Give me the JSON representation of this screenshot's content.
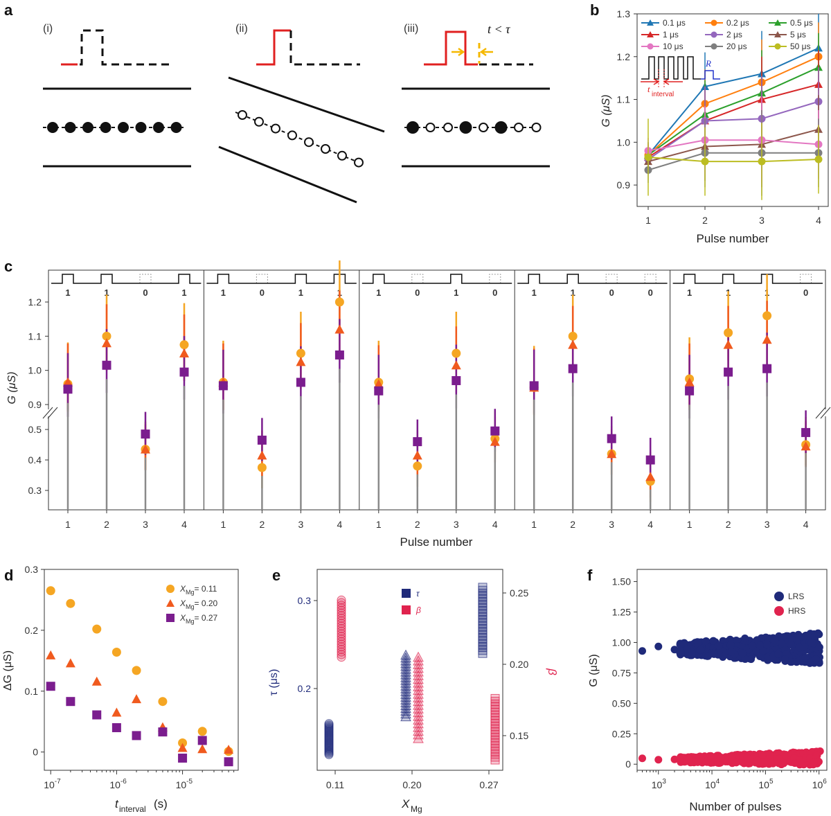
{
  "panel_labels": {
    "a": "a",
    "b": "b",
    "c": "c",
    "d": "d",
    "e": "e",
    "f": "f"
  },
  "panel_a": {
    "sub_labels": [
      "(i)",
      "(ii)",
      "(iii)"
    ],
    "condition": "t < τ"
  },
  "colors": {
    "orange": "#f5a623",
    "red_orange": "#f05a1e",
    "purple": "#7b1d8e",
    "gray": "#8a8a8a",
    "navy": "#1f2a7a",
    "crimson": "#e0234e",
    "b_series": [
      "#1f77b4",
      "#ff7f0e",
      "#2ca02c",
      "#d62728",
      "#9467bd",
      "#8c564b",
      "#e377c2",
      "#7f7f7f",
      "#bcbd22"
    ]
  },
  "chart_data": [
    {
      "id": "b",
      "type": "line",
      "xlabel": "Pulse number",
      "ylabel": "G (μS)",
      "x": [
        1,
        2,
        3,
        4
      ],
      "ylim": [
        0.85,
        1.3
      ],
      "yticks": [
        0.9,
        1.0,
        1.1,
        1.2,
        1.3
      ],
      "inset_labels": {
        "r": "R",
        "t": "t",
        "t_sub": "interval"
      },
      "series": [
        {
          "name": "0.1 μs",
          "values": [
            0.97,
            1.13,
            1.16,
            1.22
          ],
          "err": [
            0.03,
            0.08,
            0.1,
            0.08
          ]
        },
        {
          "name": "0.2 μs",
          "values": [
            0.97,
            1.09,
            1.14,
            1.2
          ],
          "err": [
            0.03,
            0.08,
            0.1,
            0.08
          ]
        },
        {
          "name": "0.5 μs",
          "values": [
            0.97,
            1.065,
            1.115,
            1.175
          ],
          "err": [
            0.03,
            0.08,
            0.1,
            0.08
          ]
        },
        {
          "name": "1 μs",
          "values": [
            0.965,
            1.05,
            1.1,
            1.135
          ],
          "err": [
            0.03,
            0.08,
            0.1,
            0.08
          ]
        },
        {
          "name": "2 μs",
          "values": [
            0.96,
            1.05,
            1.055,
            1.095
          ],
          "err": [
            0.03,
            0.08,
            0.1,
            0.08
          ]
        },
        {
          "name": "5 μs",
          "values": [
            0.955,
            0.99,
            0.995,
            1.03
          ],
          "err": [
            0.03,
            0.08,
            0.1,
            0.08
          ]
        },
        {
          "name": "10 μs",
          "values": [
            0.98,
            1.005,
            1.005,
            0.995
          ],
          "err": [
            0.03,
            0.08,
            0.1,
            0.08
          ]
        },
        {
          "name": "20 μs",
          "values": [
            0.935,
            0.975,
            0.975,
            0.975
          ],
          "err": [
            0.03,
            0.08,
            0.1,
            0.08
          ]
        },
        {
          "name": "50 μs",
          "values": [
            0.965,
            0.955,
            0.955,
            0.96
          ],
          "err": [
            0.09,
            0.08,
            0.09,
            0.08
          ]
        }
      ]
    },
    {
      "id": "c",
      "type": "scatter",
      "xlabel": "Pulse number",
      "ylabel": "G (μS)",
      "yticks_top": [
        0.9,
        1.0,
        1.1,
        1.2
      ],
      "yticks_bottom": [
        0.3,
        0.4,
        0.5
      ],
      "xticks": [
        1,
        2,
        3,
        4
      ],
      "subplots": [
        {
          "codes": [
            "1",
            "1",
            "0",
            "1"
          ],
          "orange": [
            0.96,
            1.1,
            0.435,
            1.075
          ],
          "red": [
            0.965,
            1.08,
            0.435,
            1.05
          ],
          "purple": [
            0.945,
            1.015,
            0.485,
            0.995
          ]
        },
        {
          "codes": [
            "1",
            "0",
            "1",
            "1"
          ],
          "orange": [
            0.965,
            0.375,
            1.05,
            1.2
          ],
          "red": [
            0.965,
            0.415,
            1.025,
            1.12
          ],
          "purple": [
            0.955,
            0.465,
            0.965,
            1.045
          ]
        },
        {
          "codes": [
            "1",
            "0",
            "1",
            "0"
          ],
          "orange": [
            0.965,
            0.38,
            1.05,
            0.47
          ],
          "red": [
            0.96,
            0.415,
            1.015,
            0.46
          ],
          "purple": [
            0.94,
            0.46,
            0.97,
            0.495
          ]
        },
        {
          "codes": [
            "1",
            "1",
            "0",
            "0"
          ],
          "orange": [
            0.95,
            1.1,
            0.42,
            0.33
          ],
          "red": [
            0.95,
            1.075,
            0.42,
            0.345
          ],
          "purple": [
            0.955,
            1.005,
            0.47,
            0.4
          ]
        },
        {
          "codes": [
            "1",
            "1",
            "1",
            "0"
          ],
          "orange": [
            0.975,
            1.11,
            1.16,
            0.45
          ],
          "red": [
            0.965,
            1.075,
            1.09,
            0.445
          ],
          "purple": [
            0.94,
            0.995,
            1.005,
            0.49
          ]
        }
      ]
    },
    {
      "id": "d",
      "type": "scatter",
      "xlabel": "t",
      "xlabel_sub": "interval",
      "xunit": "(s)",
      "ylabel": "ΔG (μS)",
      "xscale": "log",
      "xlim": [
        8e-08,
        7e-05
      ],
      "ylim": [
        -0.03,
        0.3
      ],
      "yticks": [
        0,
        0.1,
        0.2,
        0.3
      ],
      "yticklabels": [
        "0",
        "0.1",
        "0.2",
        "0.3"
      ],
      "legend_symbol": "X",
      "legend_sub": "Mg",
      "x": [
        1e-07,
        2e-07,
        5e-07,
        1e-06,
        2e-06,
        5e-06,
        1e-05,
        2e-05,
        5e-05
      ],
      "series": [
        {
          "name": "= 0.11",
          "marker": "circle",
          "values": [
            0.265,
            0.244,
            0.202,
            0.164,
            0.134,
            0.083,
            0.015,
            0.034,
            0.001
          ]
        },
        {
          "name": "= 0.20",
          "marker": "triangle",
          "values": [
            0.159,
            0.146,
            0.116,
            0.065,
            0.087,
            0.041,
            0.007,
            0.005,
            0.004
          ]
        },
        {
          "name": "= 0.27",
          "marker": "square",
          "values": [
            0.108,
            0.083,
            0.061,
            0.04,
            0.027,
            0.033,
            -0.01,
            0.019,
            -0.016
          ]
        }
      ]
    },
    {
      "id": "e",
      "type": "scatter",
      "xlabel": "X",
      "xlabel_sub": "Mg",
      "ylabel_left": "τ (μs)",
      "ylabel_right": "β",
      "xticklabels": [
        "0.11",
        "0.20",
        "0.27"
      ],
      "left_yticks": [
        0.2,
        0.3
      ],
      "right_yticks": [
        0.15,
        0.2,
        0.25
      ],
      "legend": [
        "τ",
        "β"
      ],
      "tau_ranges": [
        [
          0.125,
          0.16
        ],
        [
          0.168,
          0.238
        ],
        [
          0.24,
          0.315
        ]
      ],
      "beta_ranges": [
        [
          0.205,
          0.245
        ],
        [
          0.148,
          0.205
        ],
        [
          0.133,
          0.176
        ]
      ]
    },
    {
      "id": "f",
      "type": "scatter",
      "xlabel": "Number of pulses",
      "ylabel": "G (μS)",
      "xscale": "log",
      "xlim": [
        400,
        1400000.0
      ],
      "ylim": [
        -0.05,
        1.6
      ],
      "yticks": [
        0,
        0.25,
        0.5,
        0.75,
        1.0,
        1.25,
        1.5
      ],
      "yticklabels": [
        "0",
        "0.25",
        "0.50",
        "0.75",
        "1.00",
        "1.25",
        "1.50"
      ],
      "xtick_base": "10",
      "xtick_exponents": [
        "3",
        "4",
        "5",
        "6"
      ],
      "series": [
        {
          "name": "LRS",
          "center": 0.95
        },
        {
          "name": "HRS",
          "center": 0.03
        }
      ]
    }
  ]
}
